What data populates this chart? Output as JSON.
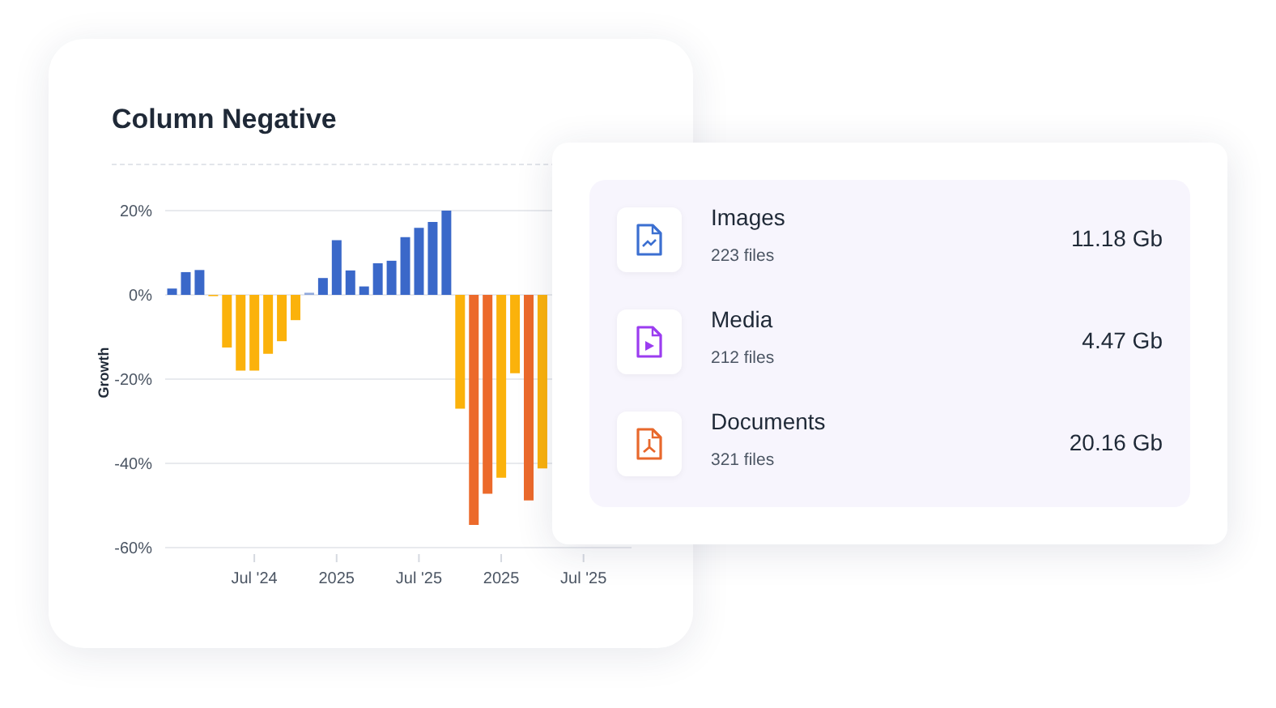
{
  "chart_data": [
    {
      "type": "bar",
      "title": "Column Negative",
      "ylabel": "Growth",
      "categories": [
        null,
        null,
        null,
        null,
        null,
        null,
        "Jul '24",
        null,
        null,
        null,
        null,
        null,
        "2025",
        null,
        null,
        null,
        null,
        null,
        "Jul '25",
        null,
        null,
        null,
        null,
        null,
        "2025",
        null,
        null,
        null,
        null,
        null,
        "Jul '25",
        null,
        null,
        null
      ],
      "values": [
        1.5,
        5.4,
        5.9,
        -0.3,
        -12.5,
        -18,
        -18,
        -14,
        -11,
        -6,
        0.5,
        4,
        13,
        5.8,
        2,
        7.5,
        8.1,
        13.7,
        15.9,
        17.3,
        20,
        -27,
        -54.6,
        -47.2,
        -43.4,
        -18.6,
        -48.8,
        -41.2,
        null,
        null,
        null,
        null,
        null,
        null
      ],
      "colors": [
        "#3a68c9",
        "#3a68c9",
        "#3a68c9",
        "#fbb20b",
        "#fbb20b",
        "#fbb20b",
        "#fbb20b",
        "#fbb20b",
        "#fbb20b",
        "#fbb20b",
        "#8fa8dc",
        "#3a68c9",
        "#3a68c9",
        "#3a68c9",
        "#3a68c9",
        "#3a68c9",
        "#3a68c9",
        "#3a68c9",
        "#3a68c9",
        "#3a68c9",
        "#3a68c9",
        "#fbb20b",
        "#ec6a2b",
        "#ec6a2b",
        "#fbb20b",
        "#fbb20b",
        "#ec6a2b",
        "#fbb20b",
        null,
        null,
        null,
        null,
        null,
        null
      ],
      "ylim": [
        -60,
        20
      ],
      "yticks": [
        {
          "value": 20,
          "label": "20%"
        },
        {
          "value": 0,
          "label": "0%"
        },
        {
          "value": -20,
          "label": "-20%"
        },
        {
          "value": -40,
          "label": "-40%"
        },
        {
          "value": -60,
          "label": "-60%"
        }
      ],
      "grid": "y",
      "legend": false
    },
    {
      "type": "other",
      "categories": [
        "Images",
        "Media",
        "Documents"
      ],
      "annotations": [
        "223 files",
        "11.18 Gb",
        "212 files",
        "4.47 Gb",
        "321 files",
        "20.16 Gb"
      ]
    }
  ]
}
